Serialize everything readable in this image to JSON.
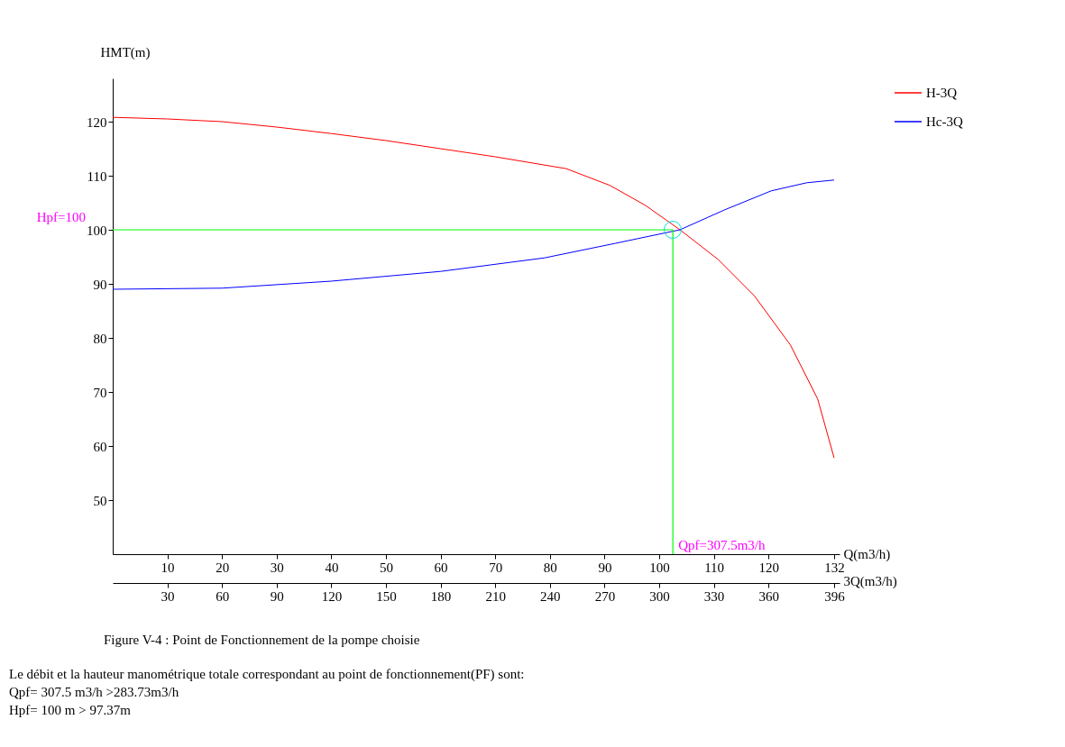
{
  "chart_data": {
    "type": "line",
    "xlabel": "Q(m3/h)",
    "ylabel": "HMT(m)",
    "x2label": "3Q(m3/h)",
    "xlim": [
      0,
      133
    ],
    "xticks": [
      10,
      20,
      30,
      40,
      50,
      60,
      70,
      80,
      90,
      100,
      110,
      120,
      132
    ],
    "x2lim": [
      0,
      399
    ],
    "x2ticks": [
      30,
      60,
      90,
      120,
      150,
      180,
      210,
      240,
      270,
      300,
      330,
      360,
      396
    ],
    "ylim": [
      40,
      128
    ],
    "yticks": [
      50,
      60,
      70,
      80,
      90,
      100,
      110,
      120
    ],
    "series": [
      {
        "name": "H-3Q",
        "color": "#ff0000",
        "x": [
          0,
          10,
          20,
          30,
          40,
          50,
          60,
          70,
          83,
          91,
          97.5,
          103.8,
          110.8,
          117.4,
          124,
          129,
          132
        ],
        "values": [
          120.8,
          120.5,
          120,
          119,
          117.8,
          116.5,
          115,
          113.5,
          111.3,
          108.2,
          104.5,
          100,
          94.5,
          87.8,
          78.7,
          68.7,
          57.8
        ]
      },
      {
        "name": "Hc-3Q",
        "color": "#0000ff",
        "x": [
          0,
          20,
          40,
          60,
          79,
          92,
          103.8,
          112,
          120.5,
          127,
          132
        ],
        "values": [
          89,
          89.2,
          90.5,
          92.3,
          94.8,
          97.5,
          100,
          103.7,
          107.2,
          108.7,
          109.2
        ]
      }
    ],
    "ref_lines": [
      {
        "axis": "y",
        "value": 100,
        "label": "Hpf=100",
        "color": "#00ff00"
      },
      {
        "axis": "x2",
        "value": 307.5,
        "label": "Qpf=307.5m3/h",
        "color": "#00ff00"
      }
    ],
    "legend": "right",
    "grid": false,
    "marker": "none",
    "line_style": "solid",
    "annotations": [
      "Figure V-4 : Point de Fonctionnement de la pompe choisie",
      "Le débit et la hauteur manométrique totale correspondant au point de fonctionnement(PF) sont:",
      "Qpf= 307.5 m3/h >283.73m3/h",
      "Hpf= 100 m > 97.37m"
    ]
  }
}
